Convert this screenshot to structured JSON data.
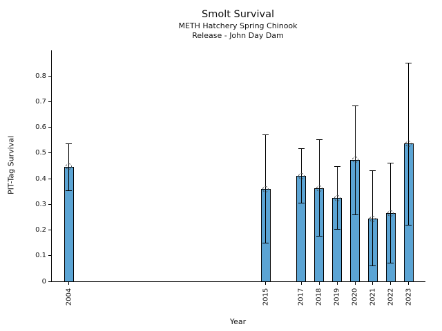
{
  "chart_data": {
    "type": "bar",
    "title": "Smolt Survival",
    "subtitle_line1": "METH Hatchery Spring Chinook",
    "subtitle_line2": "Release - John Day Dam",
    "xlabel": "Year",
    "ylabel": "PIT-Tag Survival",
    "x": [
      2004,
      2015,
      2017,
      2018,
      2019,
      2020,
      2021,
      2022,
      2023
    ],
    "x_tick_labels": [
      "2004",
      "2015",
      "2017",
      "2018",
      "2019",
      "2020",
      "2021",
      "2022",
      "2023"
    ],
    "values": [
      0.447,
      0.359,
      0.41,
      0.362,
      0.325,
      0.474,
      0.244,
      0.265,
      0.537
    ],
    "error_low": [
      0.353,
      0.148,
      0.305,
      0.175,
      0.202,
      0.26,
      0.06,
      0.07,
      0.218
    ],
    "error_high": [
      0.536,
      0.572,
      0.517,
      0.553,
      0.448,
      0.685,
      0.43,
      0.461,
      0.85
    ],
    "y_ticks": [
      0,
      0.1,
      0.2,
      0.3,
      0.4,
      0.5,
      0.6,
      0.7,
      0.8
    ],
    "y_tick_labels": [
      "0",
      "0.1",
      "0.2",
      "0.3",
      "0.4",
      "0.5",
      "0.6",
      "0.7",
      "0.8"
    ],
    "xlim": [
      2003.0,
      2023.9
    ],
    "ylim": [
      0,
      0.9
    ],
    "grid": false,
    "bar_color": "#5BA4D4",
    "bar_edge_color": "#000000",
    "error_color": "#000000",
    "marker": "open-circle-dashed"
  }
}
